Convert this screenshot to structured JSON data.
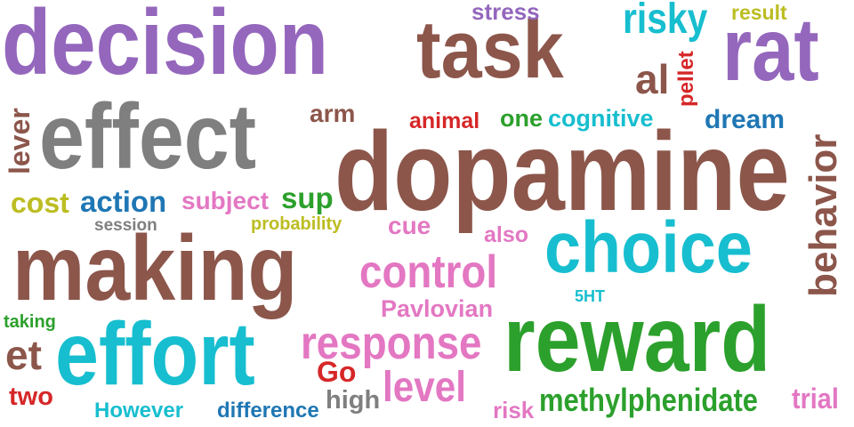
{
  "colors": {
    "purple": "#9467bd",
    "brown": "#8c564b",
    "gray": "#7f7f7f",
    "cyan": "#17becf",
    "green": "#2ca02c",
    "pink": "#e377c2",
    "red": "#d62728",
    "blue": "#1f77b4",
    "olive": "#bcbd22"
  },
  "words": [
    {
      "text": "decision",
      "color": "purple"
    },
    {
      "text": "task",
      "color": "brown"
    },
    {
      "text": "rat",
      "color": "purple"
    },
    {
      "text": "risky",
      "color": "cyan"
    },
    {
      "text": "stress",
      "color": "purple"
    },
    {
      "text": "result",
      "color": "olive"
    },
    {
      "text": "al",
      "color": "brown"
    },
    {
      "text": "pellet",
      "color": "red"
    },
    {
      "text": "effect",
      "color": "gray"
    },
    {
      "text": "arm",
      "color": "brown"
    },
    {
      "text": "animal",
      "color": "red"
    },
    {
      "text": "one",
      "color": "green"
    },
    {
      "text": "cognitive",
      "color": "cyan"
    },
    {
      "text": "dream",
      "color": "blue"
    },
    {
      "text": "dopamine",
      "color": "brown"
    },
    {
      "text": "behavior",
      "color": "brown"
    },
    {
      "text": "lever",
      "color": "brown"
    },
    {
      "text": "cost",
      "color": "olive"
    },
    {
      "text": "action",
      "color": "blue"
    },
    {
      "text": "subject",
      "color": "pink"
    },
    {
      "text": "sup",
      "color": "green"
    },
    {
      "text": "session",
      "color": "gray"
    },
    {
      "text": "probability",
      "color": "olive"
    },
    {
      "text": "cue",
      "color": "pink"
    },
    {
      "text": "also",
      "color": "pink"
    },
    {
      "text": "making",
      "color": "brown"
    },
    {
      "text": "choice",
      "color": "cyan"
    },
    {
      "text": "control",
      "color": "pink"
    },
    {
      "text": "5HT",
      "color": "cyan"
    },
    {
      "text": "Pavlovian",
      "color": "pink"
    },
    {
      "text": "taking",
      "color": "green"
    },
    {
      "text": "effort",
      "color": "cyan"
    },
    {
      "text": "response",
      "color": "pink"
    },
    {
      "text": "reward",
      "color": "green"
    },
    {
      "text": "et",
      "color": "brown"
    },
    {
      "text": "Go",
      "color": "red"
    },
    {
      "text": "level",
      "color": "pink"
    },
    {
      "text": "two",
      "color": "red"
    },
    {
      "text": "high",
      "color": "gray"
    },
    {
      "text": "methylphenidate",
      "color": "green"
    },
    {
      "text": "trial",
      "color": "pink"
    },
    {
      "text": "However",
      "color": "cyan"
    },
    {
      "text": "difference",
      "color": "blue"
    },
    {
      "text": "risk",
      "color": "pink"
    }
  ]
}
